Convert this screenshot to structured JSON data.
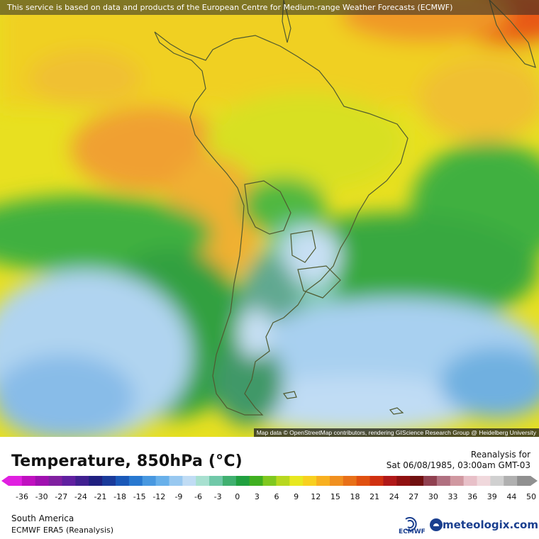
{
  "banner": "This service is based on data and products of the European Centre for Medium-range Weather Forecasts (ECMWF)",
  "attribution": "Map data © OpenStreetMap contributors, rendering GIScience Research Group @ Heidelberg University",
  "title": "Temperature, 850hPa (°C)",
  "reanalysis_label": "Reanalysis for",
  "valid_time": "Sat 06/08/1985, 03:00am GMT-03",
  "region": "South America",
  "model": "ECMWF ERA5 (Reanalysis)",
  "ecmwf_logo_text": "ECMWF",
  "brand": "meteologix.com",
  "colorbar": {
    "ticks": [
      "-36",
      "-30",
      "-27",
      "-24",
      "-21",
      "-18",
      "-15",
      "-12",
      "-9",
      "-6",
      "-3",
      "0",
      "3",
      "6",
      "9",
      "12",
      "15",
      "18",
      "21",
      "24",
      "27",
      "30",
      "33",
      "36",
      "39",
      "44",
      "50"
    ],
    "colors": [
      "#e020e0",
      "#c010c0",
      "#a010b0",
      "#8020a0",
      "#6020a0",
      "#402090",
      "#202080",
      "#1a3a9a",
      "#1a58b8",
      "#2878d0",
      "#4898e0",
      "#68b0ea",
      "#98c8f0",
      "#c0dcf4",
      "#a8e0d0",
      "#70c8a8",
      "#40b070",
      "#20a040",
      "#40b020",
      "#80c820",
      "#b8d820",
      "#e8e820",
      "#f8d020",
      "#f8b020",
      "#f09020",
      "#e87018",
      "#e05010",
      "#d03010",
      "#b01818",
      "#901010",
      "#701010",
      "#904050",
      "#b07080",
      "#d098a0",
      "#e8c0c8",
      "#f0d8dc",
      "#d0d0d0",
      "#b0b0b0",
      "#909090"
    ]
  },
  "colors": {
    "brand_blue": "#1a3f8f"
  }
}
